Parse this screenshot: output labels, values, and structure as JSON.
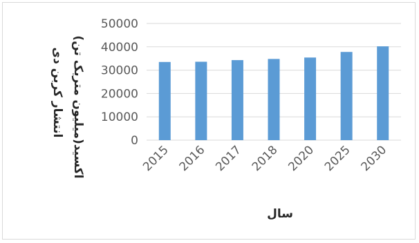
{
  "chart_data": {
    "type": "bar",
    "title": "",
    "xlabel": "سال",
    "ylabel": [
      "انتشار کربن دی",
      "اکسید(میلیون متریک تن)"
    ],
    "categories": [
      "2015",
      "2016",
      "2017",
      "2018",
      "2020",
      "2025",
      "2030"
    ],
    "values": [
      33500,
      33600,
      34300,
      34800,
      35400,
      37800,
      40200
    ],
    "ylim": [
      0,
      50000
    ],
    "yticks": [
      "0",
      "10000",
      "20000",
      "30000",
      "40000",
      "50000"
    ],
    "grid": true,
    "legend": "none",
    "bar_color": "#5b9bd5",
    "grid_color": "#d9d9d9"
  }
}
